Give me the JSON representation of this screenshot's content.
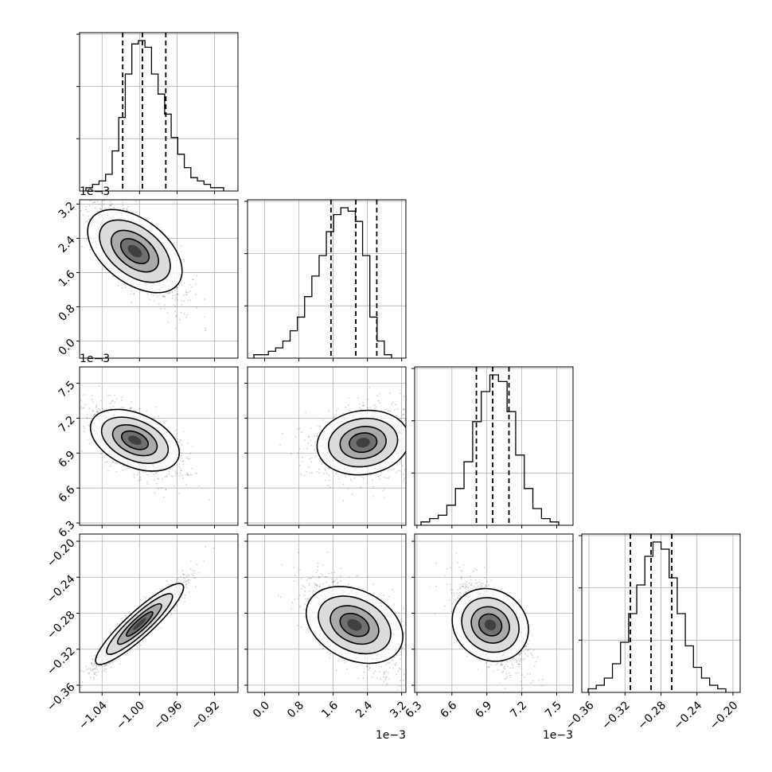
{
  "chart_data": {
    "type": "corner",
    "n_params": 4,
    "grid": true,
    "parameters": [
      {
        "index": 0,
        "range": [
          -1.064,
          -0.895
        ],
        "ticks": [
          "−1.04",
          "−1.00",
          "−0.96",
          "−0.92"
        ],
        "tick_values": [
          -1.04,
          -1.0,
          -0.96,
          -0.92
        ],
        "offset_label": "",
        "quantiles": [
          -1.018,
          -0.997,
          -0.972
        ]
      },
      {
        "index": 1,
        "range": [
          -0.0004,
          0.0033
        ],
        "ticks": [
          "0.0",
          "0.8",
          "1.6",
          "2.4",
          "3.2"
        ],
        "tick_values": [
          0.0,
          0.0008,
          0.0016,
          0.0024,
          0.0032
        ],
        "offset_label": "1e−3",
        "quantiles": [
          0.00155,
          0.00213,
          0.00262
        ]
      },
      {
        "index": 2,
        "range": [
          0.00628,
          0.00764
        ],
        "ticks": [
          "6.3",
          "6.6",
          "6.9",
          "7.2",
          "7.5"
        ],
        "tick_values": [
          0.0063,
          0.0066,
          0.0069,
          0.0072,
          0.0075
        ],
        "offset_label": "1e−3",
        "quantiles": [
          0.00681,
          0.00695,
          0.00709
        ]
      },
      {
        "index": 3,
        "range": [
          -0.368,
          -0.192
        ],
        "ticks": [
          "−0.36",
          "−0.32",
          "−0.28",
          "−0.24",
          "−0.20"
        ],
        "tick_values": [
          -0.36,
          -0.32,
          -0.28,
          -0.24,
          -0.2
        ],
        "offset_label": "",
        "quantiles": [
          -0.314,
          -0.291,
          -0.268
        ]
      }
    ],
    "histograms": [
      {
        "param": 0,
        "counts": [
          1,
          2,
          3,
          5,
          12,
          22,
          35,
          44,
          45,
          43,
          35,
          29,
          23,
          16,
          11,
          7,
          4,
          3,
          2,
          1,
          1
        ]
      },
      {
        "param": 1,
        "counts": [
          1,
          1,
          2,
          3,
          5,
          8,
          12,
          18,
          24,
          30,
          37,
          42,
          44,
          43,
          40,
          30,
          12,
          5,
          1
        ]
      },
      {
        "param": 2,
        "counts": [
          1,
          2,
          3,
          6,
          11,
          19,
          31,
          40,
          45,
          43,
          34,
          21,
          11,
          5,
          2,
          1
        ]
      },
      {
        "param": 3,
        "counts": [
          1,
          2,
          4,
          8,
          14,
          22,
          30,
          38,
          42,
          40,
          32,
          22,
          13,
          7,
          4,
          2,
          1
        ]
      }
    ],
    "correlations": {
      "1_0": -0.72,
      "2_0": -0.58,
      "2_1": 0.2,
      "3_0": 0.95,
      "3_1": -0.55,
      "3_2": -0.55
    },
    "pair_peaks": {
      "1_0": [
        -1.005,
        0.0021
      ],
      "2_0": [
        -1.005,
        0.00701
      ],
      "2_1": [
        0.0023,
        0.00699
      ],
      "3_0": [
        -1.0,
        -0.292
      ],
      "3_1": [
        0.0021,
        -0.293
      ],
      "3_2": [
        0.00693,
        -0.293
      ]
    }
  }
}
